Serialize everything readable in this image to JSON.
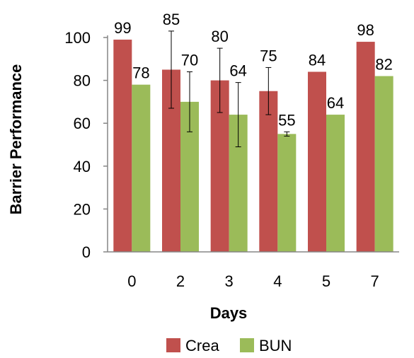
{
  "chart_data": {
    "type": "bar",
    "xlabel": "Days",
    "ylabel": "Barrier Performance",
    "categories": [
      "0",
      "2",
      "3",
      "4",
      "5",
      "7"
    ],
    "ylim": [
      0,
      100
    ],
    "yticks": [
      0,
      20,
      40,
      60,
      80,
      100
    ],
    "grid": false,
    "legend_position": "bottom",
    "series": [
      {
        "name": "Crea",
        "color": "#c0504d",
        "values": [
          99,
          85,
          80,
          75,
          84,
          98
        ],
        "labels": [
          "99",
          "85",
          "80",
          "75",
          "84",
          "98"
        ],
        "error": [
          null,
          18,
          15,
          11,
          null,
          null
        ]
      },
      {
        "name": "BUN",
        "color": "#9bbb59",
        "values": [
          78,
          70,
          64,
          55,
          64,
          82
        ],
        "labels": [
          "78",
          "70",
          "64",
          "55",
          "64",
          "82"
        ],
        "error": [
          null,
          14,
          15,
          1,
          null,
          null
        ]
      }
    ]
  }
}
